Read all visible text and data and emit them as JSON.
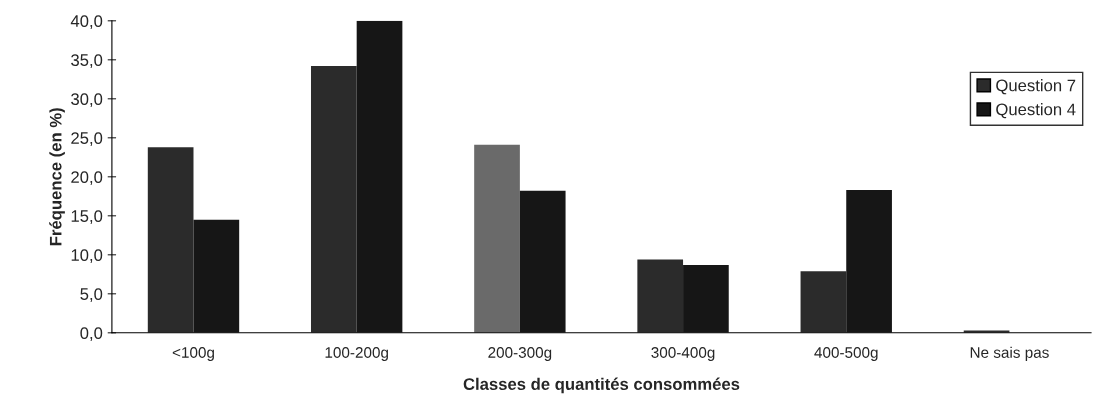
{
  "chart_data": {
    "type": "bar",
    "xlabel": "Classes de quantités consommées",
    "ylabel": "Fréquence (en %)",
    "categories": [
      "<100g",
      "100-200g",
      "200-300g",
      "300-400g",
      "400-500g",
      "Ne sais pas"
    ],
    "series": [
      {
        "name": "Question 7",
        "color": "#2b2b2b",
        "colors": [
          "#2b2b2b",
          "#2b2b2b",
          "#6a6a6a",
          "#2b2b2b",
          "#2b2b2b",
          "#2b2b2b"
        ],
        "values": [
          23.8,
          34.2,
          24.1,
          9.4,
          7.9,
          0.3
        ]
      },
      {
        "name": "Question 4",
        "color": "#161616",
        "values": [
          14.5,
          40.0,
          18.2,
          8.7,
          18.3,
          0
        ]
      }
    ],
    "ylim": [
      0,
      40
    ],
    "yticks": [
      {
        "value": 0,
        "label": "0,0"
      },
      {
        "value": 5,
        "label": "5,0"
      },
      {
        "value": 10,
        "label": "10,0"
      },
      {
        "value": 15,
        "label": "15,0"
      },
      {
        "value": 20,
        "label": "20,0"
      },
      {
        "value": 25,
        "label": "25,0"
      },
      {
        "value": 30,
        "label": "30,0"
      },
      {
        "value": 35,
        "label": "35,0"
      },
      {
        "value": 40,
        "label": "40,0"
      }
    ],
    "grid": false,
    "legend": "right"
  }
}
